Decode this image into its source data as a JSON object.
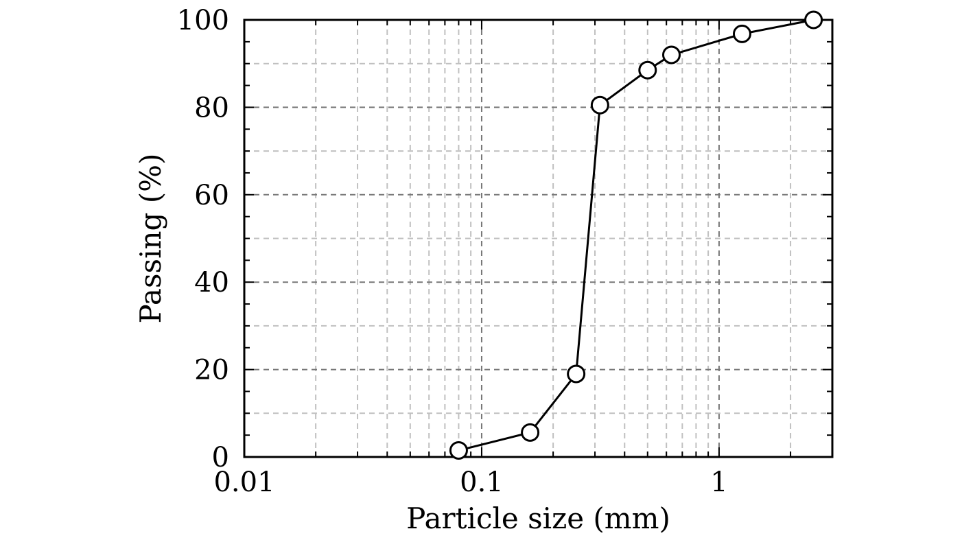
{
  "chart_data": {
    "type": "line",
    "title": "",
    "xlabel": "Particle size (mm)",
    "ylabel": "Passing (%)",
    "x_scale": "log",
    "xlim": [
      0.01,
      3
    ],
    "ylim": [
      0,
      100
    ],
    "x_ticks": [
      0.01,
      0.1,
      1
    ],
    "x_tick_labels": [
      "0.01",
      "0.1",
      "1"
    ],
    "y_ticks": [
      0,
      20,
      40,
      60,
      80,
      100
    ],
    "y_tick_labels": [
      "0",
      "20",
      "40",
      "60",
      "80",
      "100"
    ],
    "grid": true,
    "legend": "none",
    "series": [
      {
        "x": [
          0.08,
          0.16,
          0.25,
          0.315,
          0.5,
          0.63,
          1.25,
          2.5
        ],
        "y": [
          1.5,
          5.6,
          19,
          80.5,
          88.5,
          92,
          96.8,
          100
        ],
        "marker": "open-circle",
        "color": "#000000"
      }
    ],
    "colors": {
      "axis": "#000000",
      "major_grid": "#777777",
      "minor_grid": "#c0c0c0"
    }
  }
}
